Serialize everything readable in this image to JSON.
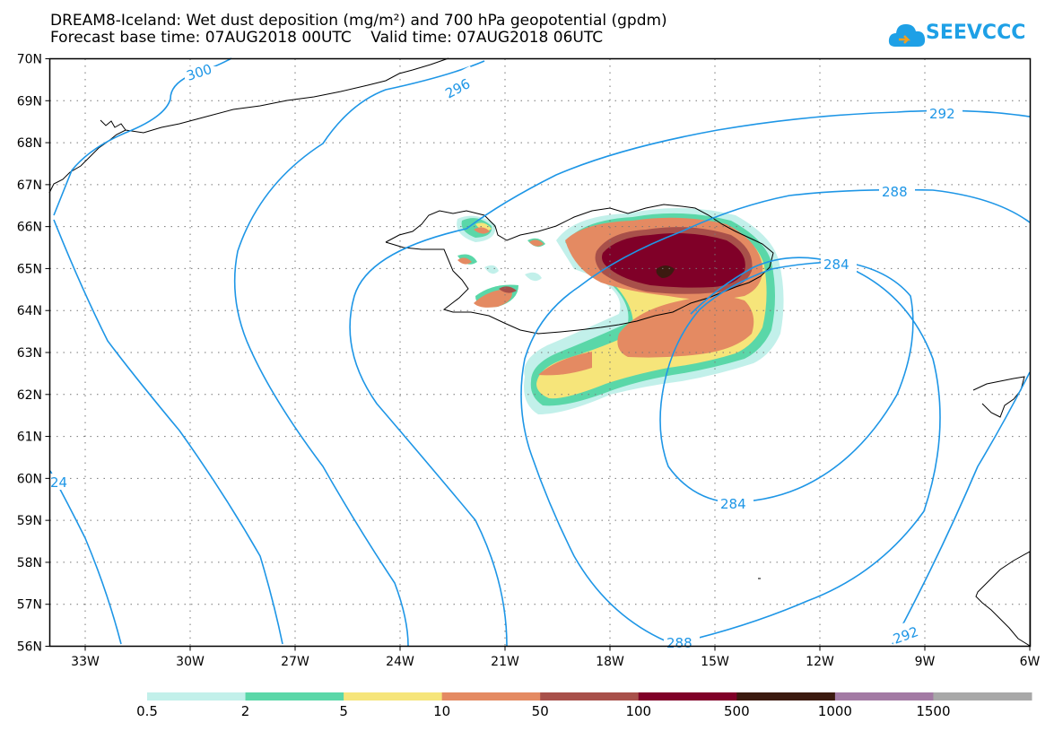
{
  "header": {
    "title_line1": "DREAM8-Iceland: Wet dust deposition (mg/m²) and 700 hPa geopotential (gpdm)",
    "title_line2": "Forecast base time: 07AUG2018 00UTC    Valid time: 07AUG2018 06UTC"
  },
  "logo": {
    "text": "SEEVCCC",
    "color": "#1ea0e6"
  },
  "map": {
    "lat_labels": [
      "70N",
      "69N",
      "68N",
      "67N",
      "66N",
      "65N",
      "64N",
      "63N",
      "62N",
      "61N",
      "60N",
      "59N",
      "58N",
      "57N",
      "56N"
    ],
    "lon_labels": [
      "33W",
      "30W",
      "27W",
      "24W",
      "21W",
      "18W",
      "15W",
      "12W",
      "9W",
      "6W"
    ],
    "contour_color": "#1e96e6",
    "contour_labels": [
      "300",
      "296",
      "292",
      "288",
      "284",
      "284",
      "288",
      "292",
      "24"
    ]
  },
  "legend": {
    "labels": [
      "0.5",
      "2",
      "5",
      "10",
      "50",
      "100",
      "500",
      "1000",
      "1500"
    ],
    "colors": [
      "#c2f0ea",
      "#5ad7a8",
      "#f6e57a",
      "#e48a62",
      "#a8504a",
      "#800028",
      "#3c1a10",
      "#a37aa4",
      "#a8a8a8"
    ]
  }
}
